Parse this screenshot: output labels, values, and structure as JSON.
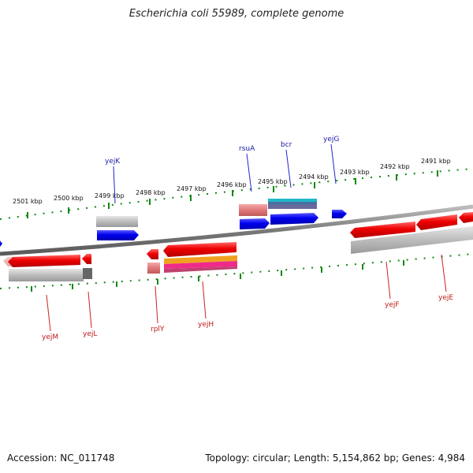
{
  "title": "Escherichia coli 55989, complete genome",
  "footer": {
    "accession": "Accession: NC_011748",
    "topology": "Topology: circular; Length: 5,154,862 bp; Genes: 4,984"
  },
  "scale_labels": [
    "2501 kbp",
    "2500 kbp",
    "2499 kbp",
    "2498 kbp",
    "2497 kbp",
    "2496 kbp",
    "2495 kbp",
    "2494 kbp",
    "2493 kbp",
    "2492 kbp",
    "2491 kbp"
  ],
  "genes_top": [
    "yejK",
    "rsuA",
    "bcr",
    "yejG"
  ],
  "genes_bottom": [
    "yejM",
    "yejL",
    "rplY",
    "yejH",
    "yejF",
    "yejE"
  ],
  "colors": {
    "forward_cds": "#0000ee",
    "reverse_cds": "#ee0000",
    "tick": "#118811",
    "backbone": "#888888",
    "label_forward": "#1a1aa8",
    "label_reverse": "#c01818"
  }
}
